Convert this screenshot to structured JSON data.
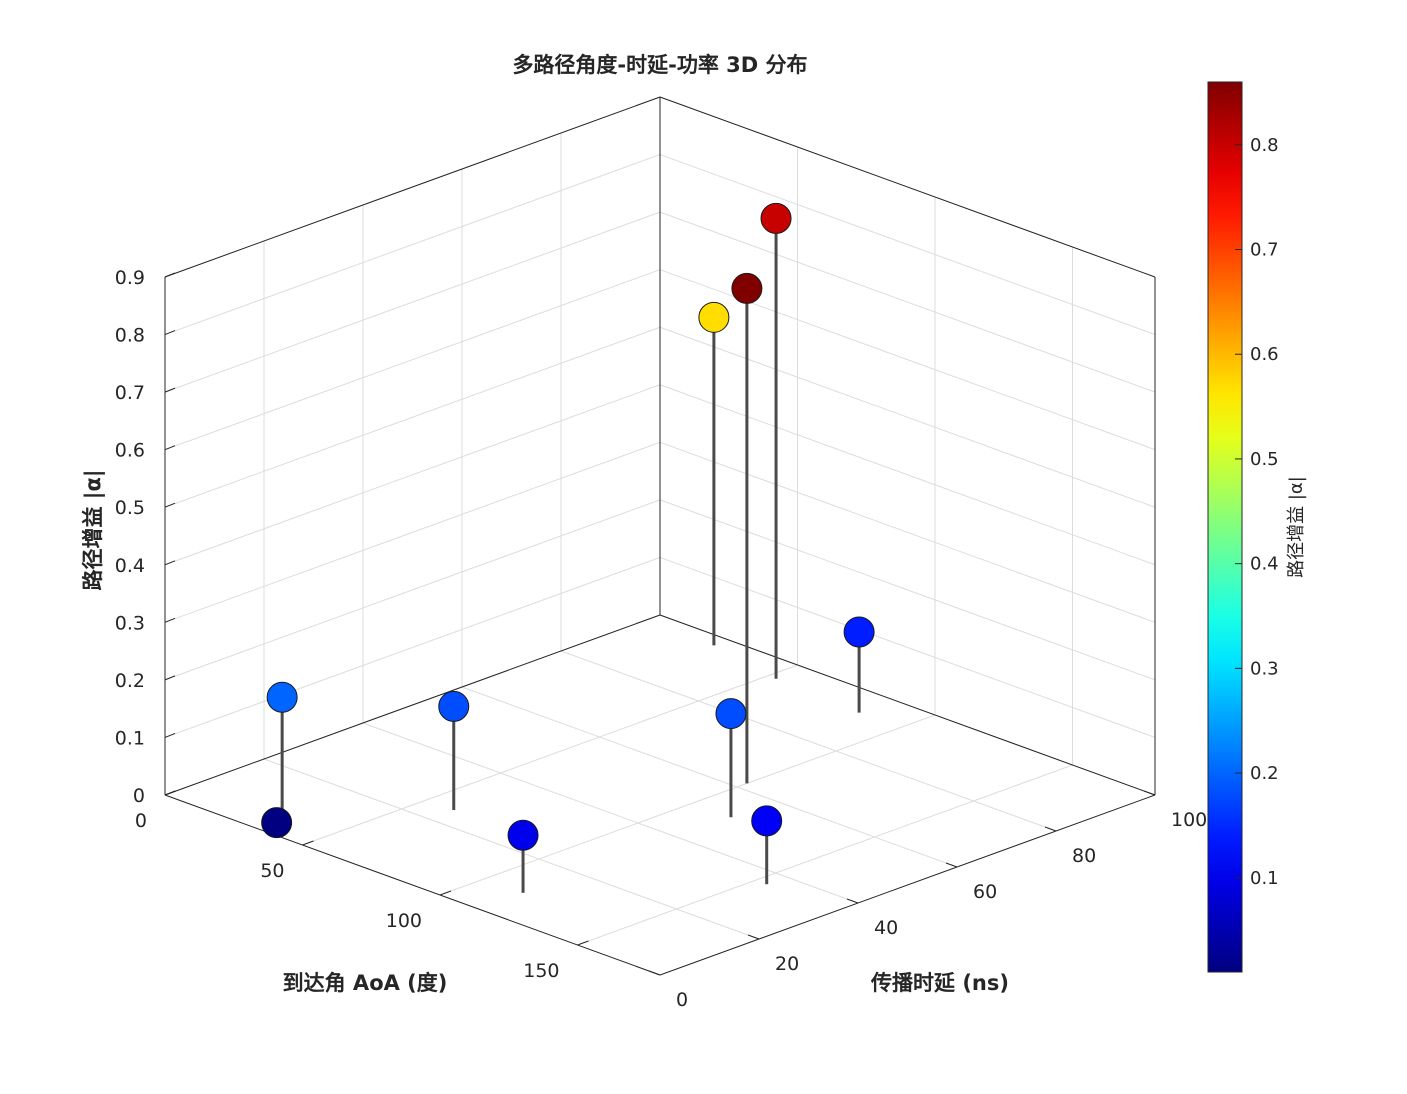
{
  "chart_data": {
    "type": "scatter",
    "subtype": "3d-stem",
    "title": "多路径角度-时延-功率 3D 分布",
    "xlabel": "到达角 AoA (度)",
    "ylabel": "传播时延 (ns)",
    "zlabel": "路径增益 |α|",
    "colorbar_label": "路径增益 |α|",
    "colormap": "jet",
    "grid": true,
    "xlim": [
      0,
      180
    ],
    "ylim": [
      0,
      100
    ],
    "zlim": [
      0,
      0.9
    ],
    "clim": [
      0.01,
      0.86
    ],
    "x_ticks": [
      "0",
      "50",
      "100",
      "150"
    ],
    "y_ticks": [
      "0",
      "20",
      "40",
      "60",
      "80",
      "100"
    ],
    "z_ticks": [
      "0",
      "0.1",
      "0.2",
      "0.3",
      "0.4",
      "0.5",
      "0.6",
      "0.7",
      "0.8",
      "0.9"
    ],
    "cb_ticks": [
      "0.1",
      "0.2",
      "0.3",
      "0.4",
      "0.5",
      "0.6",
      "0.7",
      "0.8"
    ],
    "points": [
      {
        "x": 37,
        "y": 2,
        "z": 0.01
      },
      {
        "x": 30,
        "y": 7,
        "z": 0.2
      },
      {
        "x": 60,
        "y": 25,
        "z": 0.18
      },
      {
        "x": 114,
        "y": 9,
        "z": 0.1
      },
      {
        "x": 100,
        "y": 62,
        "z": 0.86
      },
      {
        "x": 114,
        "y": 51,
        "z": 0.18
      },
      {
        "x": 85,
        "y": 93,
        "z": 0.14
      },
      {
        "x": 154,
        "y": 36,
        "z": 0.11
      },
      {
        "x": 53,
        "y": 94,
        "z": 0.8
      },
      {
        "x": 25,
        "y": 97,
        "z": 0.57
      }
    ]
  }
}
